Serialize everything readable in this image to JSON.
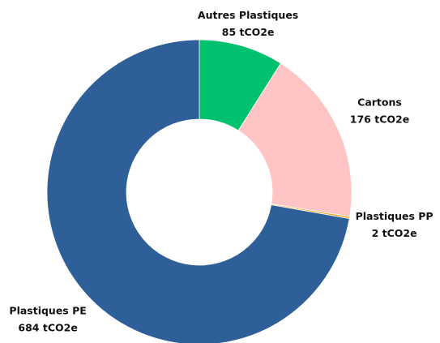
{
  "chart_data": {
    "type": "donut",
    "categories": [
      "Autres Plastiques",
      "Cartons",
      "Plastiques PP",
      "Plastiques PE"
    ],
    "values": [
      85,
      176,
      2,
      684
    ],
    "value_labels": [
      "85 tCO2e",
      "176 tCO2e",
      "2 tCO2e",
      "684 tCO2e"
    ],
    "colors": [
      "#00c26e",
      "#ffc4c4",
      "#f5a623",
      "#2f5f98"
    ]
  }
}
